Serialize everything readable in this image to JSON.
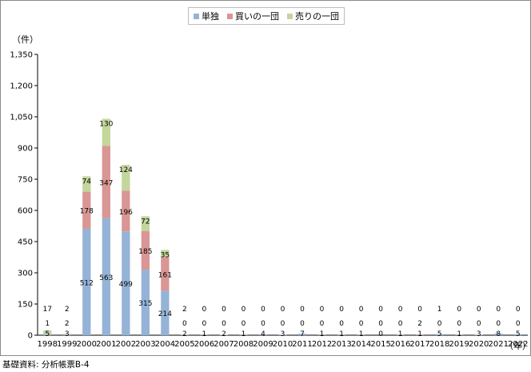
{
  "source_note": "基礎資料: 分析帳票B-4",
  "y_unit": "（件）",
  "x_unit": "（年）",
  "chart_data": {
    "type": "bar",
    "stacked": true,
    "categories": [
      "1998",
      "1999",
      "2000",
      "2001",
      "2002",
      "2003",
      "2004",
      "2005",
      "2006",
      "2007",
      "2008",
      "2009",
      "2010",
      "2011",
      "2012",
      "2013",
      "2014",
      "2015",
      "2016",
      "2017",
      "2018",
      "2019",
      "2020",
      "2021",
      "2022"
    ],
    "series": [
      {
        "name": "単独",
        "color": "#95b3d7",
        "values": [
          5,
          3,
          512,
          563,
          499,
          315,
          214,
          2,
          1,
          2,
          1,
          4,
          3,
          7,
          1,
          1,
          1,
          0,
          1,
          1,
          5,
          1,
          3,
          8,
          5
        ]
      },
      {
        "name": "買いの一団",
        "color": "#d99694",
        "values": [
          1,
          2,
          178,
          347,
          196,
          185,
          161,
          0,
          0,
          0,
          0,
          0,
          0,
          0,
          0,
          0,
          0,
          0,
          0,
          2,
          0,
          0,
          0,
          0,
          0
        ]
      },
      {
        "name": "売りの一団",
        "color": "#c3d69b",
        "values": [
          17,
          2,
          74,
          130,
          124,
          72,
          35,
          2,
          0,
          0,
          0,
          0,
          0,
          0,
          0,
          0,
          0,
          0,
          0,
          0,
          1,
          0,
          0,
          0,
          0
        ]
      }
    ],
    "ylim": [
      0,
      1350
    ],
    "yticks": [
      "0",
      "150",
      "300",
      "450",
      "600",
      "750",
      "900",
      "1,050",
      "1,200",
      "1,350"
    ],
    "legend_position": "top-center",
    "grid": false
  }
}
